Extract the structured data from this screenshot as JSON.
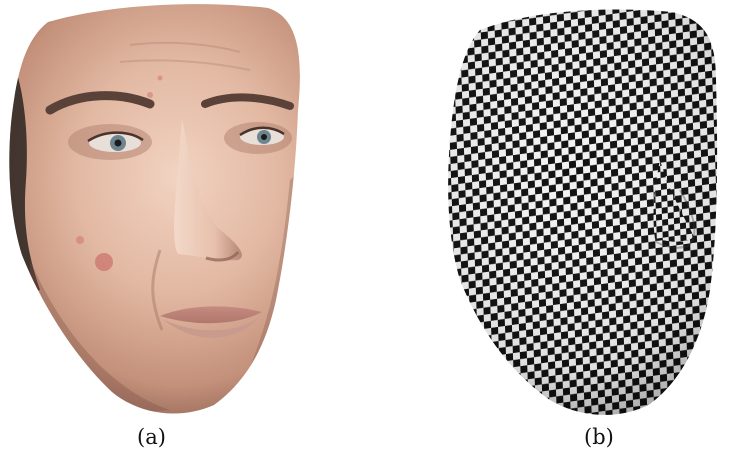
{
  "figure": {
    "panels": [
      {
        "id": "a",
        "caption": "(a)",
        "content": "textured-face-render"
      },
      {
        "id": "b",
        "caption": "(b)",
        "content": "checkerboard-uv-face-render"
      }
    ],
    "colors": {
      "skin_light": "#e6c2ad",
      "skin_mid": "#c99882",
      "skin_shadow": "#8a6052",
      "checker_dark": "#111111",
      "checker_light": "#f2f2f2",
      "hair": "#2a2320"
    }
  }
}
